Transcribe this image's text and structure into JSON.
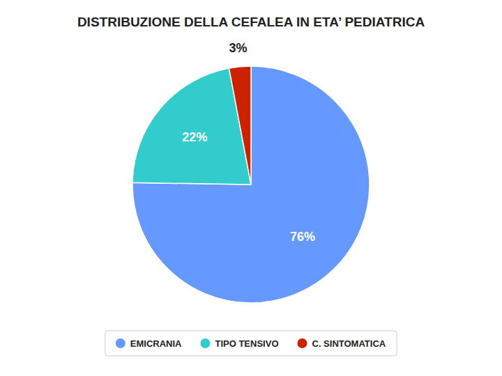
{
  "chart_data": {
    "type": "pie",
    "title": "DISTRIBUZIONE DELLA CEFALEA IN ETA’ PEDIATRICA",
    "categories": [
      "EMICRANIA",
      "TIPO TENSIVO",
      "C. SINTOMATICA"
    ],
    "values": [
      76,
      22,
      3
    ],
    "value_labels": [
      "76%",
      "22%",
      "3%"
    ],
    "colors": [
      "#6699FF",
      "#33CCCC",
      "#CC2200"
    ],
    "data_labels": true,
    "legend": "bottom"
  }
}
